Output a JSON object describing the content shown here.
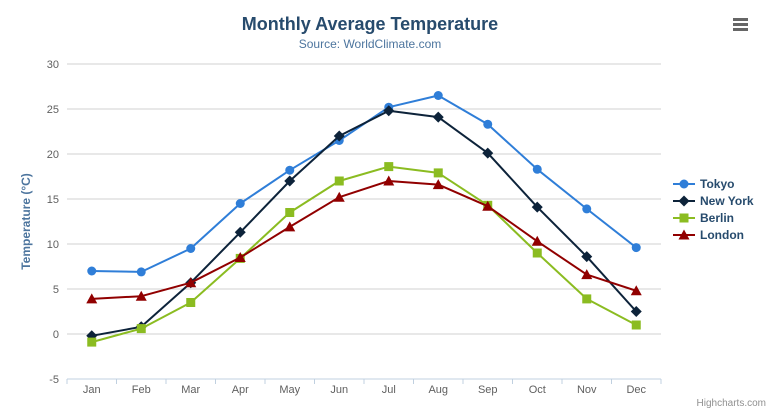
{
  "chart_data": {
    "type": "line",
    "title": "Monthly Average Temperature",
    "subtitle": "Source: WorldClimate.com",
    "categories": [
      "Jan",
      "Feb",
      "Mar",
      "Apr",
      "May",
      "Jun",
      "Jul",
      "Aug",
      "Sep",
      "Oct",
      "Nov",
      "Dec"
    ],
    "xlabel": "",
    "ylabel": "Temperature (°C)",
    "ylim": [
      -5,
      30
    ],
    "ytick_step": 5,
    "yticks": [
      -5,
      0,
      5,
      10,
      15,
      20,
      25,
      30
    ],
    "grid": true,
    "legend_position": "right",
    "series": [
      {
        "name": "Tokyo",
        "color": "#2f7ed8",
        "marker": "circle",
        "values": [
          7.0,
          6.9,
          9.5,
          14.5,
          18.2,
          21.5,
          25.2,
          26.5,
          23.3,
          18.3,
          13.9,
          9.6
        ]
      },
      {
        "name": "New York",
        "color": "#0d233a",
        "marker": "diamond",
        "values": [
          -0.2,
          0.8,
          5.7,
          11.3,
          17.0,
          22.0,
          24.8,
          24.1,
          20.1,
          14.1,
          8.6,
          2.5
        ]
      },
      {
        "name": "Berlin",
        "color": "#8bbc21",
        "marker": "square",
        "values": [
          -0.9,
          0.6,
          3.5,
          8.4,
          13.5,
          17.0,
          18.6,
          17.9,
          14.3,
          9.0,
          3.9,
          1.0
        ]
      },
      {
        "name": "London",
        "color": "#910000",
        "marker": "triangle",
        "values": [
          3.9,
          4.2,
          5.7,
          8.5,
          11.9,
          15.2,
          17.0,
          16.6,
          14.2,
          10.3,
          6.6,
          4.8
        ]
      }
    ]
  },
  "credits": {
    "text": "Highcharts.com"
  },
  "menu": {
    "icon": "hamburger-icon"
  },
  "colors": {
    "title": "#274b6d",
    "subtitle": "#4d759e",
    "axis_title": "#4d759e",
    "axis_labels": "#606060",
    "grid_line": "#d0d0d0",
    "axis_line": "#c0d0e0",
    "tick": "#c0d0e0",
    "credits": "#909090",
    "legend_text": "#274b6d",
    "menu_icon": "#666666",
    "background": "#ffffff"
  }
}
